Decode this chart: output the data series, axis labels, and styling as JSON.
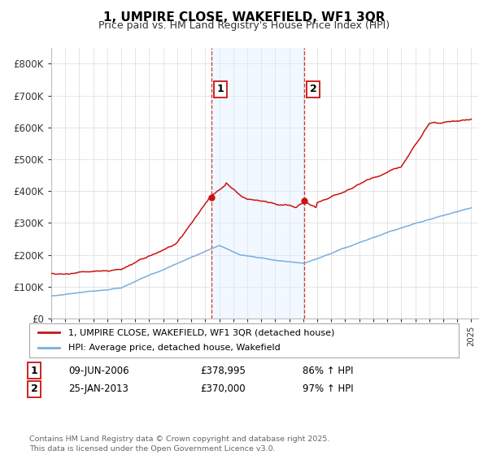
{
  "title": "1, UMPIRE CLOSE, WAKEFIELD, WF1 3QR",
  "subtitle": "Price paid vs. HM Land Registry's House Price Index (HPI)",
  "ylim": [
    0,
    850000
  ],
  "yticks": [
    0,
    100000,
    200000,
    300000,
    400000,
    500000,
    600000,
    700000,
    800000
  ],
  "ytick_labels": [
    "£0",
    "£100K",
    "£200K",
    "£300K",
    "£400K",
    "£500K",
    "£600K",
    "£700K",
    "£800K"
  ],
  "hpi_color": "#7aaddd",
  "price_color": "#cc1111",
  "marker1_year": 2006.44,
  "marker2_year": 2013.07,
  "marker1_price": 378995,
  "marker2_price": 370000,
  "shade_color": "#ddeeff",
  "legend_label1": "1, UMPIRE CLOSE, WAKEFIELD, WF1 3QR (detached house)",
  "legend_label2": "HPI: Average price, detached house, Wakefield",
  "date1": "09-JUN-2006",
  "date2": "25-JAN-2013",
  "pct1": "86% ↑ HPI",
  "pct2": "97% ↑ HPI",
  "price1_str": "£378,995",
  "price2_str": "£370,000",
  "footer": "Contains HM Land Registry data © Crown copyright and database right 2025.\nThis data is licensed under the Open Government Licence v3.0.",
  "background_color": "#ffffff",
  "grid_color": "#e0e0e0"
}
